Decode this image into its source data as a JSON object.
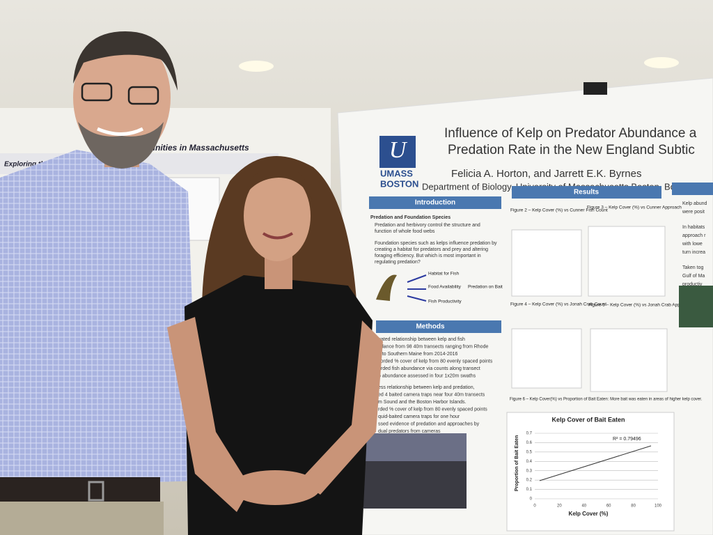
{
  "poster": {
    "title_lines": [
      "Influence of Kelp on Predator Abundance a",
      "Predation Rate in the New England Subtic"
    ],
    "logo": [
      "UMASS",
      "BOSTON"
    ],
    "authors": "Felicia A. Horton, and Jarrett E.K. Byrnes",
    "affiliation": "Department of Biology, University of Massachusetts Boston, Bo",
    "sections": {
      "introduction": "Introduction",
      "results": "Results",
      "methods": "Methods"
    },
    "intro_heading": "Predation and Foundation Species",
    "intro_bullets": [
      "Predation and herbivory control the structure and",
      "function of whole food webs",
      "Foundation species such as kelps influence predation by",
      "creating a habitat for predators and prey and altering",
      "foraging efficiency. But which is most important in",
      "regulating predation?"
    ],
    "diagram_labels": [
      "Habitat for Fish",
      "Food Availability",
      "Predation on Bait",
      "Fish Productivity"
    ],
    "methods_lines": [
      "uated relationship between kelp and fish",
      "ndance from 98 40m transects ranging from Rhode",
      "d to Southern Maine from 2014-2016",
      "corded % cover of kelp from 80 evenly spaced points",
      "orded fish abundance via counts along transect",
      "b abundance assessed in four 1x20m swaths",
      "ess relationship between kelp and predation,",
      "ed 4 baited camera traps near four 40m transects",
      "m Sound and the Boston Harbor Islands.",
      "rded % cover of kelp from 80 evenly spaced points",
      "quid-baited camera traps for one hour",
      "ssed evidence of predation and approaches by",
      "dual predators from cameras"
    ],
    "figure_captions": [
      "Figure 2 – Kelp Cover (%) vs Cunner Fish Count",
      "Figure 3 – Kelp Cover (%) vs Cunner Approach",
      "Figure 4 – Kelp Cover (%) vs Jonah Crab Count",
      "Figure 5 – Kelp Cover (%) vs Jonah Crab Approach",
      "Figure 6 – Kelp Cover(%) vs Proportion of Bait Eaten: More bait was eaten in areas of higher kelp cover."
    ],
    "chart": {
      "title": "Kelp Cover of Bait Eaten",
      "x_label": "Kelp Cover (%)",
      "y_label": "Proportion of Bait Eaten",
      "r2": "R² = 0.79496",
      "xticks": [
        "0",
        "20",
        "40",
        "60",
        "80",
        "100"
      ],
      "yticks": [
        "0",
        "0.1",
        "0.2",
        "0.3",
        "0.4",
        "0.5",
        "0.6",
        "0.7"
      ]
    },
    "right_column": [
      "Kelp abund",
      "were posit",
      "In habitats",
      "approach r",
      "with lowe",
      "turn increa",
      "Taken tog",
      "Gulf of Ma",
      "productiv"
    ]
  },
  "background_poster": {
    "title_fragment": "munities in Massachusetts",
    "left_fragment": "Exploring the effec"
  }
}
